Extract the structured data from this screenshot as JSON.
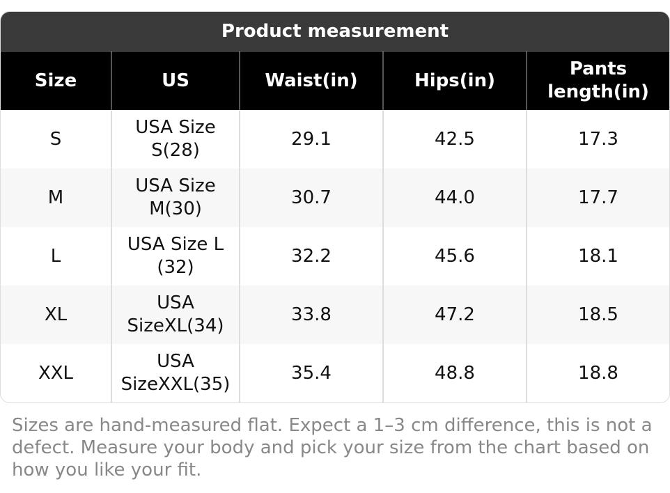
{
  "table": {
    "title": "Product measurement",
    "headers": [
      "Size",
      "US",
      "Waist(in)",
      "Hips(in)",
      "Pants length(in)"
    ],
    "rows": [
      [
        "S",
        "USA Size S(28)",
        "29.1",
        "42.5",
        "17.3"
      ],
      [
        "M",
        "USA Size M(30)",
        "30.7",
        "44.0",
        "17.7"
      ],
      [
        "L",
        "USA Size L (32)",
        "32.2",
        "45.6",
        "18.1"
      ],
      [
        "XL",
        "USA SizeXL(34)",
        "33.8",
        "47.2",
        "18.5"
      ],
      [
        "XXL",
        "USA SizeXXL(35)",
        "35.4",
        "48.8",
        "18.8"
      ]
    ]
  },
  "note": "Sizes are hand-measured flat. Expect a 1–3 cm difference, this is not a defect. Measure your body and pick your size from the chart based on how you like your fit."
}
